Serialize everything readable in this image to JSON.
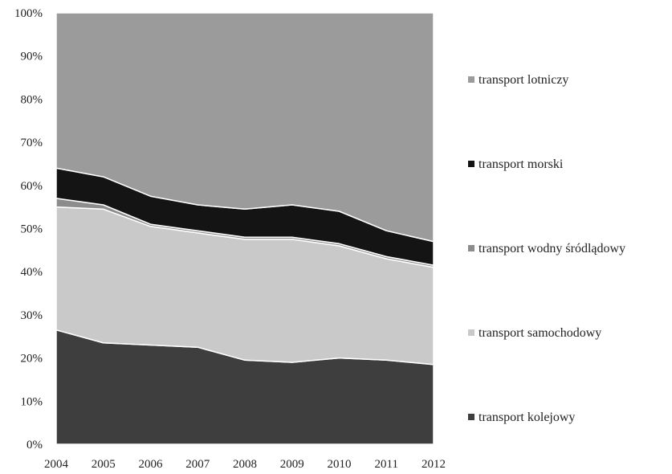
{
  "chart_data": {
    "type": "area",
    "stacked": true,
    "normalized": true,
    "x": [
      "2004",
      "2005",
      "2006",
      "2007",
      "2008",
      "2009",
      "2010",
      "2011",
      "2012"
    ],
    "yticks": [
      "0%",
      "10%",
      "20%",
      "30%",
      "40%",
      "50%",
      "60%",
      "70%",
      "80%",
      "90%",
      "100%"
    ],
    "ylim": [
      0,
      100
    ],
    "legend_position": "right",
    "series": [
      {
        "name": "transport kolejowy",
        "color": "#3e3e3e",
        "values": [
          26.5,
          23.5,
          23.0,
          22.5,
          19.5,
          19.0,
          20.0,
          19.5,
          18.5
        ]
      },
      {
        "name": "transport samochodowy",
        "color": "#c9c9c9",
        "values": [
          28.5,
          31.0,
          27.5,
          26.5,
          28.0,
          28.5,
          26.0,
          23.5,
          22.5
        ]
      },
      {
        "name": "transport wodny śródlądowy",
        "color": "#8c8c8c",
        "values": [
          2.0,
          1.0,
          0.5,
          0.5,
          0.5,
          0.5,
          0.5,
          0.5,
          0.5
        ]
      },
      {
        "name": "transport morski",
        "color": "#141414",
        "values": [
          7.0,
          6.5,
          6.5,
          6.0,
          6.5,
          7.5,
          7.5,
          6.0,
          5.5
        ]
      },
      {
        "name": "transport lotniczy",
        "color": "#9b9b9b",
        "values": [
          36.0,
          38.0,
          42.5,
          44.5,
          45.5,
          44.5,
          46.0,
          50.5,
          53.0
        ]
      }
    ],
    "legend_order": [
      "transport lotniczy",
      "transport morski",
      "transport wodny śródlądowy",
      "transport samochodowy",
      "transport kolejowy"
    ]
  }
}
